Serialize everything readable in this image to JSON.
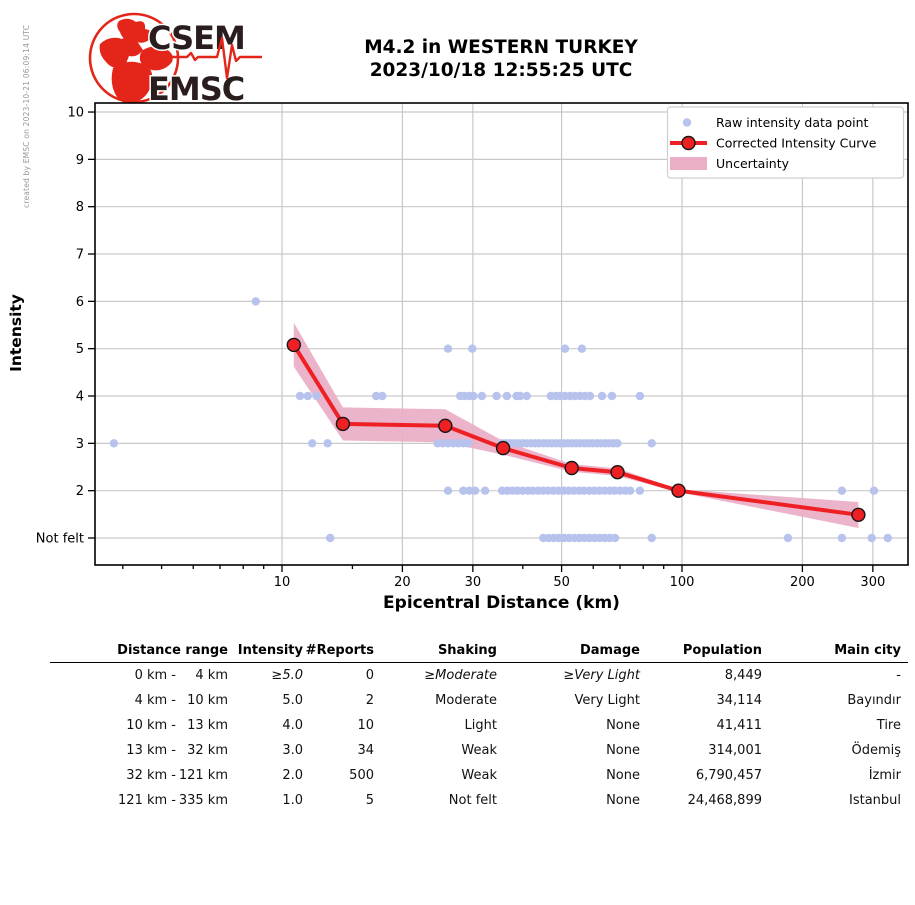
{
  "page": {
    "created_by": "created by EMSC on 2023-10-21 06:09:14 UTC"
  },
  "logo": {
    "top_text": "CSEM",
    "bottom_text": "EMSC",
    "red": "#e32619",
    "dark": "#2a1d1d"
  },
  "chart_data": {
    "type": "scatter+line",
    "title": "M4.2 in WESTERN TURKEY",
    "subtitle": "2023/10/18 12:55:25 UTC",
    "xlabel": "Epicentral Distance (km)",
    "ylabel": "Intensity",
    "x_scale": "log",
    "x_ticks": [
      10,
      20,
      30,
      50,
      100,
      200,
      300
    ],
    "x_minor_ticks": [
      4,
      5,
      6,
      7,
      8,
      9,
      15,
      40,
      60,
      70,
      80,
      90
    ],
    "x_range_km": [
      3.4,
      367
    ],
    "y_tick_values": [
      1,
      2,
      3,
      4,
      5,
      6,
      7,
      8,
      9,
      10
    ],
    "y_tick_labels": [
      "Not felt",
      "2",
      "3",
      "4",
      "5",
      "6",
      "7",
      "8",
      "9",
      "10"
    ],
    "y_range": [
      0.43,
      10.19
    ],
    "grid": true,
    "legend_position": "upper right",
    "legend": [
      {
        "type": "point",
        "label": "Raw intensity data point"
      },
      {
        "type": "line-marker",
        "label": "Corrected Intensity Curve"
      },
      {
        "type": "patch",
        "label": "Uncertainty"
      }
    ],
    "colors": {
      "raw_point": "#b7c2ed",
      "curve": "#ee2024",
      "marker_fill": "#ee2024",
      "marker_edge": "#161616",
      "band": "#eaaec6",
      "grid": "#c9c9c9",
      "axis": "#000000"
    },
    "curve": [
      [
        10.7,
        5.08
      ],
      [
        14.2,
        3.41
      ],
      [
        25.6,
        3.37
      ],
      [
        35.7,
        2.9
      ],
      [
        53,
        2.48
      ],
      [
        69,
        2.39
      ],
      [
        98,
        2.0
      ],
      [
        276,
        1.49
      ]
    ],
    "band_upper": [
      [
        10.7,
        5.55
      ],
      [
        14.2,
        3.76
      ],
      [
        25.6,
        3.72
      ],
      [
        35.7,
        3.05
      ],
      [
        53,
        2.56
      ],
      [
        69,
        2.47
      ],
      [
        98,
        2.03
      ],
      [
        276,
        1.76
      ]
    ],
    "band_lower": [
      [
        10.7,
        4.62
      ],
      [
        14.2,
        3.06
      ],
      [
        25.6,
        3.02
      ],
      [
        35.7,
        2.76
      ],
      [
        53,
        2.4
      ],
      [
        69,
        2.31
      ],
      [
        98,
        1.97
      ],
      [
        276,
        1.21
      ]
    ],
    "raw_points": [
      [
        8.6,
        6
      ],
      [
        26,
        5
      ],
      [
        29.9,
        5
      ],
      [
        51,
        5
      ],
      [
        56.2,
        5
      ],
      [
        11.1,
        4
      ],
      [
        11.6,
        4
      ],
      [
        12.2,
        4
      ],
      [
        17.2,
        4
      ],
      [
        17.8,
        4
      ],
      [
        27.9,
        4
      ],
      [
        28.6,
        4
      ],
      [
        29.4,
        4
      ],
      [
        30.1,
        4
      ],
      [
        31.6,
        4
      ],
      [
        34.4,
        4
      ],
      [
        36.5,
        4
      ],
      [
        38.6,
        4
      ],
      [
        39.4,
        4
      ],
      [
        40.9,
        4
      ],
      [
        47,
        4
      ],
      [
        48.4,
        4
      ],
      [
        49.6,
        4
      ],
      [
        51,
        4
      ],
      [
        52.5,
        4
      ],
      [
        54,
        4
      ],
      [
        55.6,
        4
      ],
      [
        57.2,
        4
      ],
      [
        58.9,
        4
      ],
      [
        63.1,
        4
      ],
      [
        66.8,
        4
      ],
      [
        78.5,
        4
      ],
      [
        3.8,
        3
      ],
      [
        11.9,
        3
      ],
      [
        13,
        3
      ],
      [
        24.5,
        3
      ],
      [
        25.2,
        3
      ],
      [
        26,
        3
      ],
      [
        26.8,
        3
      ],
      [
        27.6,
        3
      ],
      [
        28.4,
        3
      ],
      [
        29.2,
        3
      ],
      [
        35.5,
        3
      ],
      [
        36.3,
        3
      ],
      [
        37.2,
        3
      ],
      [
        38.1,
        3
      ],
      [
        39,
        3
      ],
      [
        39.9,
        3
      ],
      [
        40.9,
        3
      ],
      [
        41.9,
        3
      ],
      [
        42.9,
        3
      ],
      [
        43.9,
        3
      ],
      [
        45,
        3
      ],
      [
        46.1,
        3
      ],
      [
        47.2,
        3
      ],
      [
        48.3,
        3
      ],
      [
        49.5,
        3
      ],
      [
        50.7,
        3
      ],
      [
        51.9,
        3
      ],
      [
        53.2,
        3
      ],
      [
        54.4,
        3
      ],
      [
        55.7,
        3
      ],
      [
        57.1,
        3
      ],
      [
        58.4,
        3
      ],
      [
        59.8,
        3
      ],
      [
        61.3,
        3
      ],
      [
        62.8,
        3
      ],
      [
        64.3,
        3
      ],
      [
        65.8,
        3
      ],
      [
        67.4,
        3
      ],
      [
        69,
        3
      ],
      [
        84,
        3
      ],
      [
        26,
        2
      ],
      [
        28.4,
        2
      ],
      [
        29.4,
        2
      ],
      [
        30.4,
        2
      ],
      [
        32.2,
        2
      ],
      [
        35.5,
        2
      ],
      [
        36.6,
        2
      ],
      [
        37.7,
        2
      ],
      [
        38.8,
        2
      ],
      [
        40,
        2
      ],
      [
        41.2,
        2
      ],
      [
        42.4,
        2
      ],
      [
        43.7,
        2
      ],
      [
        45,
        2
      ],
      [
        46.3,
        2
      ],
      [
        47.7,
        2
      ],
      [
        49.1,
        2
      ],
      [
        50.6,
        2
      ],
      [
        52.1,
        2
      ],
      [
        53.7,
        2
      ],
      [
        55.3,
        2
      ],
      [
        56.9,
        2
      ],
      [
        58.6,
        2
      ],
      [
        60.4,
        2
      ],
      [
        62.2,
        2
      ],
      [
        64,
        2
      ],
      [
        66,
        2
      ],
      [
        67.9,
        2
      ],
      [
        70,
        2
      ],
      [
        72.1,
        2
      ],
      [
        74.2,
        2
      ],
      [
        78.5,
        2
      ],
      [
        251,
        2
      ],
      [
        302,
        2
      ],
      [
        13.2,
        1
      ],
      [
        45,
        1
      ],
      [
        46.4,
        1
      ],
      [
        47.8,
        1
      ],
      [
        49.2,
        1
      ],
      [
        50.7,
        1
      ],
      [
        52.2,
        1
      ],
      [
        53.8,
        1
      ],
      [
        55.4,
        1
      ],
      [
        57,
        1
      ],
      [
        58.7,
        1
      ],
      [
        60.5,
        1
      ],
      [
        62.3,
        1
      ],
      [
        64.1,
        1
      ],
      [
        66,
        1
      ],
      [
        68,
        1
      ],
      [
        84,
        1
      ],
      [
        184,
        1
      ],
      [
        251,
        1
      ],
      [
        298,
        1
      ],
      [
        327,
        1
      ]
    ]
  },
  "table": {
    "columns": [
      "Distance range",
      "Intensity",
      "#Reports",
      "Shaking",
      "Damage",
      "Population",
      "Main city"
    ],
    "rows": [
      {
        "range_from": "0 km -",
        "range_to": "4 km",
        "intensity": "≥5.0",
        "reports": "0",
        "shaking": "≥Moderate",
        "damage": "≥Very Light",
        "population": "8,449",
        "main_city": "-"
      },
      {
        "range_from": "4 km -",
        "range_to": "10 km",
        "intensity": "5.0",
        "reports": "2",
        "shaking": "Moderate",
        "damage": "Very Light",
        "population": "34,114",
        "main_city": "Bayındır"
      },
      {
        "range_from": "10 km -",
        "range_to": "13 km",
        "intensity": "4.0",
        "reports": "10",
        "shaking": "Light",
        "damage": "None",
        "population": "41,411",
        "main_city": "Tire"
      },
      {
        "range_from": "13 km -",
        "range_to": "32 km",
        "intensity": "3.0",
        "reports": "34",
        "shaking": "Weak",
        "damage": "None",
        "population": "314,001",
        "main_city": "Ödemiş"
      },
      {
        "range_from": "32 km -",
        "range_to": "121 km",
        "intensity": "2.0",
        "reports": "500",
        "shaking": "Weak",
        "damage": "None",
        "population": "6,790,457",
        "main_city": "İzmir"
      },
      {
        "range_from": "121 km -",
        "range_to": "335 km",
        "intensity": "1.0",
        "reports": "5",
        "shaking": "Not felt",
        "damage": "None",
        "population": "24,468,899",
        "main_city": "Istanbul"
      }
    ]
  }
}
